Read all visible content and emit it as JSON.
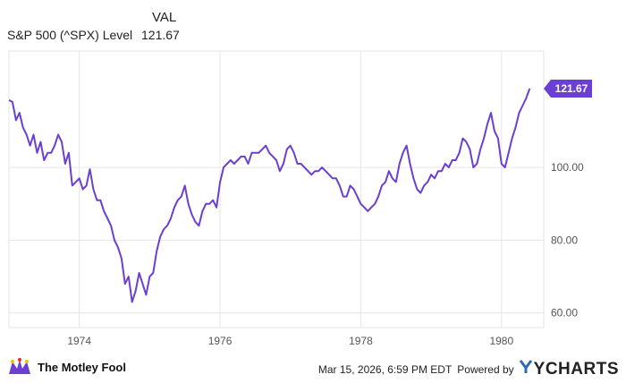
{
  "legend": {
    "header": "VAL",
    "series_name": "S&P 500 (^SPX) Level",
    "series_value": "121.67"
  },
  "footer": {
    "brand": "The Motley Fool",
    "timestamp": "Mar 15, 2026, 6:59 PM EDT",
    "powered_by": "Powered by",
    "provider": "YCHARTS"
  },
  "colors": {
    "line": "#6a3fd1",
    "grid": "#e6e6e6",
    "badge": "#6a3fd1",
    "axis_text": "#555555"
  },
  "chart_data": {
    "type": "line",
    "title": "",
    "xlabel": "",
    "ylabel": "",
    "xlim": [
      1973.0,
      1980.6
    ],
    "ylim": [
      56,
      132
    ],
    "x_ticks": [
      "1974",
      "1976",
      "1978",
      "1980"
    ],
    "y_ticks": [
      "60.00",
      "80.00",
      "100.00"
    ],
    "last_value_label": "121.67",
    "grid": true,
    "series": [
      {
        "name": "S&P 500 (^SPX) Level",
        "points": [
          [
            1973.0,
            118.5
          ],
          [
            1973.05,
            118.0
          ],
          [
            1973.1,
            113.0
          ],
          [
            1973.15,
            115.0
          ],
          [
            1973.2,
            111.0
          ],
          [
            1973.25,
            109.0
          ],
          [
            1973.3,
            106.0
          ],
          [
            1973.35,
            109.0
          ],
          [
            1973.4,
            104.0
          ],
          [
            1973.45,
            107.0
          ],
          [
            1973.5,
            102.0
          ],
          [
            1973.55,
            104.0
          ],
          [
            1973.6,
            104.0
          ],
          [
            1973.65,
            106.0
          ],
          [
            1973.7,
            109.0
          ],
          [
            1973.75,
            107.0
          ],
          [
            1973.8,
            101.0
          ],
          [
            1973.85,
            104.0
          ],
          [
            1973.9,
            95.0
          ],
          [
            1973.95,
            96.0
          ],
          [
            1974.0,
            97.0
          ],
          [
            1974.05,
            94.0
          ],
          [
            1974.1,
            95.0
          ],
          [
            1974.15,
            99.5
          ],
          [
            1974.2,
            94.0
          ],
          [
            1974.25,
            91.0
          ],
          [
            1974.3,
            91.0
          ],
          [
            1974.35,
            88.0
          ],
          [
            1974.4,
            86.0
          ],
          [
            1974.45,
            84.0
          ],
          [
            1974.5,
            80.0
          ],
          [
            1974.55,
            78.0
          ],
          [
            1974.6,
            75.0
          ],
          [
            1974.65,
            68.0
          ],
          [
            1974.7,
            70.0
          ],
          [
            1974.75,
            63.0
          ],
          [
            1974.8,
            66.0
          ],
          [
            1974.85,
            71.0
          ],
          [
            1974.9,
            68.0
          ],
          [
            1974.95,
            65.0
          ],
          [
            1975.0,
            70.0
          ],
          [
            1975.05,
            71.0
          ],
          [
            1975.1,
            77.0
          ],
          [
            1975.15,
            81.0
          ],
          [
            1975.2,
            83.0
          ],
          [
            1975.25,
            84.0
          ],
          [
            1975.3,
            86.0
          ],
          [
            1975.35,
            89.0
          ],
          [
            1975.4,
            91.0
          ],
          [
            1975.45,
            92.0
          ],
          [
            1975.5,
            95.0
          ],
          [
            1975.55,
            90.0
          ],
          [
            1975.6,
            87.0
          ],
          [
            1975.65,
            85.0
          ],
          [
            1975.7,
            84.0
          ],
          [
            1975.75,
            88.0
          ],
          [
            1975.8,
            90.0
          ],
          [
            1975.85,
            90.0
          ],
          [
            1975.9,
            91.0
          ],
          [
            1975.95,
            89.0
          ],
          [
            1976.0,
            96.0
          ],
          [
            1976.05,
            100.0
          ],
          [
            1976.1,
            101.0
          ],
          [
            1976.15,
            102.0
          ],
          [
            1976.2,
            101.0
          ],
          [
            1976.25,
            102.0
          ],
          [
            1976.3,
            103.0
          ],
          [
            1976.35,
            103.0
          ],
          [
            1976.4,
            101.0
          ],
          [
            1976.45,
            104.0
          ],
          [
            1976.5,
            104.0
          ],
          [
            1976.55,
            104.0
          ],
          [
            1976.6,
            105.0
          ],
          [
            1976.65,
            106.0
          ],
          [
            1976.7,
            104.0
          ],
          [
            1976.75,
            103.0
          ],
          [
            1976.8,
            102.0
          ],
          [
            1976.85,
            99.0
          ],
          [
            1976.9,
            101.0
          ],
          [
            1976.95,
            105.0
          ],
          [
            1977.0,
            106.0
          ],
          [
            1977.05,
            104.0
          ],
          [
            1977.1,
            101.0
          ],
          [
            1977.15,
            101.0
          ],
          [
            1977.2,
            100.0
          ],
          [
            1977.25,
            99.0
          ],
          [
            1977.3,
            98.0
          ],
          [
            1977.35,
            99.0
          ],
          [
            1977.4,
            99.0
          ],
          [
            1977.45,
            100.0
          ],
          [
            1977.5,
            99.0
          ],
          [
            1977.55,
            98.0
          ],
          [
            1977.6,
            97.0
          ],
          [
            1977.65,
            97.0
          ],
          [
            1977.7,
            95.0
          ],
          [
            1977.75,
            92.0
          ],
          [
            1977.8,
            92.0
          ],
          [
            1977.85,
            95.0
          ],
          [
            1977.9,
            94.0
          ],
          [
            1977.95,
            92.0
          ],
          [
            1978.0,
            90.0
          ],
          [
            1978.05,
            89.0
          ],
          [
            1978.1,
            88.0
          ],
          [
            1978.15,
            89.0
          ],
          [
            1978.2,
            90.0
          ],
          [
            1978.25,
            92.0
          ],
          [
            1978.3,
            95.0
          ],
          [
            1978.35,
            96.0
          ],
          [
            1978.4,
            99.0
          ],
          [
            1978.45,
            97.0
          ],
          [
            1978.5,
            96.0
          ],
          [
            1978.55,
            101.0
          ],
          [
            1978.6,
            104.0
          ],
          [
            1978.65,
            106.0
          ],
          [
            1978.7,
            101.0
          ],
          [
            1978.75,
            97.0
          ],
          [
            1978.8,
            94.0
          ],
          [
            1978.85,
            93.0
          ],
          [
            1978.9,
            95.0
          ],
          [
            1978.95,
            96.0
          ],
          [
            1979.0,
            98.0
          ],
          [
            1979.05,
            97.0
          ],
          [
            1979.1,
            99.0
          ],
          [
            1979.15,
            99.0
          ],
          [
            1979.2,
            101.0
          ],
          [
            1979.25,
            100.0
          ],
          [
            1979.3,
            102.0
          ],
          [
            1979.35,
            102.0
          ],
          [
            1979.4,
            104.0
          ],
          [
            1979.45,
            108.0
          ],
          [
            1979.5,
            107.0
          ],
          [
            1979.55,
            105.0
          ],
          [
            1979.6,
            100.0
          ],
          [
            1979.65,
            101.0
          ],
          [
            1979.7,
            105.0
          ],
          [
            1979.75,
            108.0
          ],
          [
            1979.8,
            112.0
          ],
          [
            1979.85,
            115.0
          ],
          [
            1979.9,
            110.0
          ],
          [
            1979.95,
            108.0
          ],
          [
            1980.0,
            101.0
          ],
          [
            1980.05,
            100.0
          ],
          [
            1980.1,
            104.0
          ],
          [
            1980.15,
            108.0
          ],
          [
            1980.2,
            111.0
          ],
          [
            1980.25,
            115.0
          ],
          [
            1980.3,
            117.0
          ],
          [
            1980.35,
            119.0
          ],
          [
            1980.4,
            121.67
          ]
        ]
      }
    ]
  }
}
